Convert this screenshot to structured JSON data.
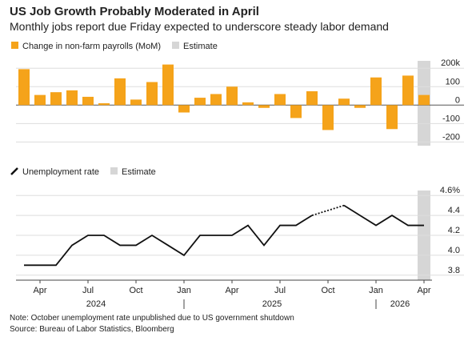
{
  "header": {
    "title": "US Job Growth Probably Moderated in April",
    "subtitle": "Monthly jobs report due Friday expected to underscore steady labor demand"
  },
  "chart_data": [
    {
      "type": "bar",
      "categories": [
        null,
        "Apr",
        null,
        null,
        "Jul",
        null,
        null,
        "Oct",
        null,
        null,
        "Jan",
        null,
        null,
        "Apr",
        null,
        null,
        "Jul",
        null,
        null,
        "Oct",
        null,
        null,
        "Jan",
        null,
        null,
        "Apr"
      ],
      "year_labels": [
        {
          "text": "2024",
          "first": 0,
          "count": 10
        },
        {
          "text": "2025",
          "first": 10,
          "count": 12
        },
        {
          "text": "2026",
          "first": 22,
          "count": 4
        }
      ],
      "series": [
        {
          "name": "Change in non-farm payrolls (MoM)",
          "color": "#f5a31a",
          "values": [
            195,
            55,
            70,
            80,
            45,
            10,
            145,
            30,
            125,
            220,
            -40,
            40,
            60,
            100,
            15,
            -15,
            60,
            -70,
            75,
            -135,
            35,
            -15,
            150,
            -130,
            160,
            55
          ]
        }
      ],
      "estimate": {
        "name": "Estimate",
        "color": "#d6d6d6",
        "index": 25
      },
      "ylim": [
        -220,
        240
      ],
      "yticks": [
        {
          "value": 200,
          "label": "200k"
        },
        100,
        0,
        -100,
        -200
      ],
      "grid": true
    },
    {
      "type": "line",
      "categories": [
        null,
        "Apr",
        null,
        null,
        "Jul",
        null,
        null,
        "Oct",
        null,
        null,
        "Jan",
        null,
        null,
        "Apr",
        null,
        null,
        "Jul",
        null,
        null,
        "Oct",
        null,
        null,
        "Jan",
        null,
        null,
        "Apr"
      ],
      "year_labels": [
        {
          "text": "2024",
          "first": 0,
          "count": 10
        },
        {
          "text": "2025",
          "first": 10,
          "count": 12
        },
        {
          "text": "2026",
          "first": 22,
          "count": 4
        }
      ],
      "series": [
        {
          "name": "Unemployment rate",
          "color": "#111111",
          "values": [
            3.9,
            3.9,
            3.9,
            4.1,
            4.2,
            4.2,
            4.1,
            4.1,
            4.2,
            4.1,
            4.0,
            4.2,
            4.2,
            4.2,
            4.3,
            4.1,
            4.3,
            4.3,
            4.4,
            null,
            4.5,
            4.4,
            4.3,
            4.4,
            4.3,
            4.3
          ]
        }
      ],
      "estimate": {
        "name": "Estimate",
        "color": "#d6d6d6",
        "index": 25
      },
      "ylim": [
        3.75,
        4.65
      ],
      "yticks": [
        {
          "value": 4.6,
          "label": "4.6%"
        },
        4.4,
        4.2,
        {
          "value": 4.0,
          "label": "4.0"
        },
        3.8
      ],
      "grid": true
    }
  ],
  "footer": {
    "note": "Note: October unemployment rate unpublished due to US government shutdown",
    "source": "Source: Bureau of Labor Statistics, Bloomberg"
  }
}
